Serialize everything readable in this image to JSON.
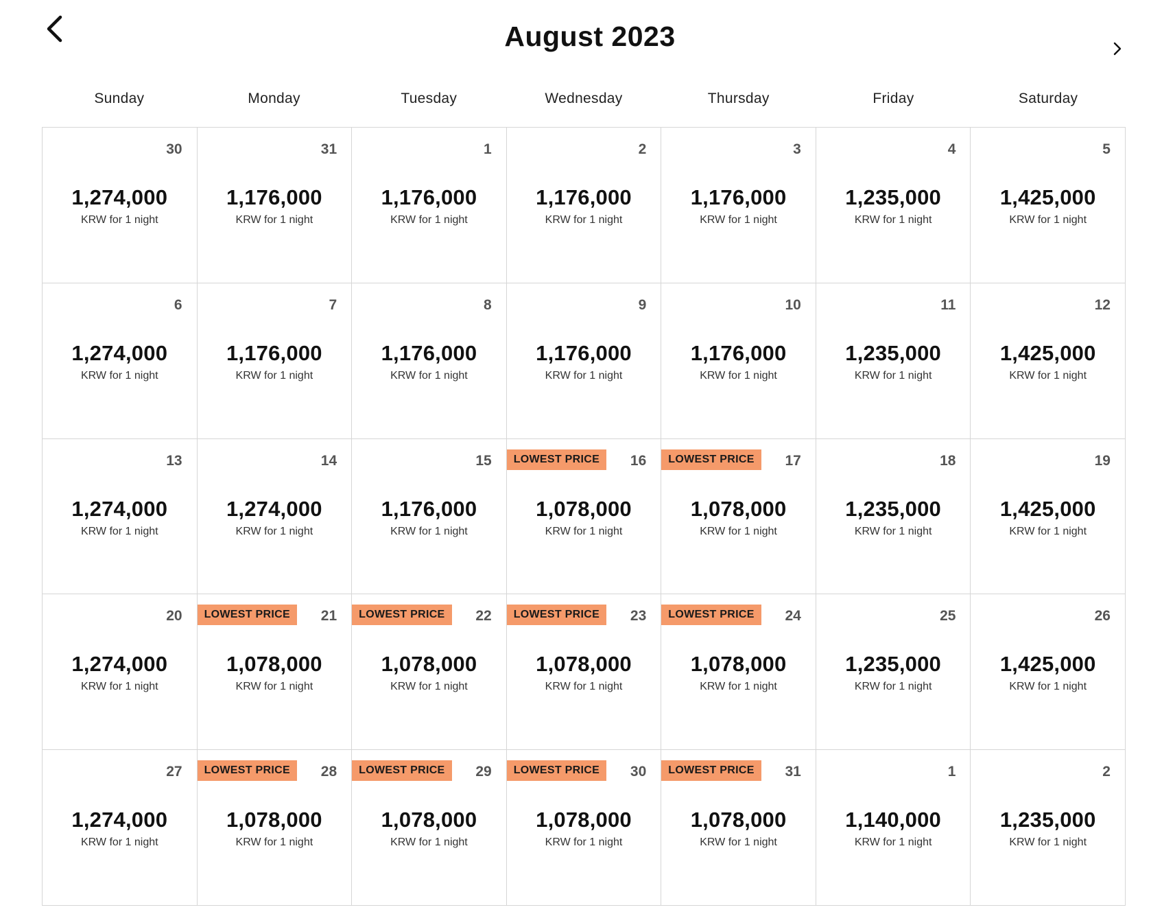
{
  "header": {
    "title": "August 2023",
    "back_icon": "chevron-left-icon",
    "next_icon": "chevron-right-icon"
  },
  "weekdays": [
    "Sunday",
    "Monday",
    "Tuesday",
    "Wednesday",
    "Thursday",
    "Friday",
    "Saturday"
  ],
  "badge_color": "#f59a6a",
  "days": [
    {
      "day": "30",
      "price": "1,274,000",
      "note": "KRW for 1 night",
      "badge": ""
    },
    {
      "day": "31",
      "price": "1,176,000",
      "note": "KRW for 1 night",
      "badge": ""
    },
    {
      "day": "1",
      "price": "1,176,000",
      "note": "KRW for 1 night",
      "badge": ""
    },
    {
      "day": "2",
      "price": "1,176,000",
      "note": "KRW for 1 night",
      "badge": ""
    },
    {
      "day": "3",
      "price": "1,176,000",
      "note": "KRW for 1 night",
      "badge": ""
    },
    {
      "day": "4",
      "price": "1,235,000",
      "note": "KRW for 1 night",
      "badge": ""
    },
    {
      "day": "5",
      "price": "1,425,000",
      "note": "KRW for 1 night",
      "badge": ""
    },
    {
      "day": "6",
      "price": "1,274,000",
      "note": "KRW for 1 night",
      "badge": ""
    },
    {
      "day": "7",
      "price": "1,176,000",
      "note": "KRW for 1 night",
      "badge": ""
    },
    {
      "day": "8",
      "price": "1,176,000",
      "note": "KRW for 1 night",
      "badge": ""
    },
    {
      "day": "9",
      "price": "1,176,000",
      "note": "KRW for 1 night",
      "badge": ""
    },
    {
      "day": "10",
      "price": "1,176,000",
      "note": "KRW for 1 night",
      "badge": ""
    },
    {
      "day": "11",
      "price": "1,235,000",
      "note": "KRW for 1 night",
      "badge": ""
    },
    {
      "day": "12",
      "price": "1,425,000",
      "note": "KRW for 1 night",
      "badge": ""
    },
    {
      "day": "13",
      "price": "1,274,000",
      "note": "KRW for 1 night",
      "badge": ""
    },
    {
      "day": "14",
      "price": "1,274,000",
      "note": "KRW for 1 night",
      "badge": ""
    },
    {
      "day": "15",
      "price": "1,176,000",
      "note": "KRW for 1 night",
      "badge": ""
    },
    {
      "day": "16",
      "price": "1,078,000",
      "note": "KRW for 1 night",
      "badge": "LOWEST PRICE"
    },
    {
      "day": "17",
      "price": "1,078,000",
      "note": "KRW for 1 night",
      "badge": "LOWEST PRICE"
    },
    {
      "day": "18",
      "price": "1,235,000",
      "note": "KRW for 1 night",
      "badge": ""
    },
    {
      "day": "19",
      "price": "1,425,000",
      "note": "KRW for 1 night",
      "badge": ""
    },
    {
      "day": "20",
      "price": "1,274,000",
      "note": "KRW for 1 night",
      "badge": ""
    },
    {
      "day": "21",
      "price": "1,078,000",
      "note": "KRW for 1 night",
      "badge": "LOWEST PRICE"
    },
    {
      "day": "22",
      "price": "1,078,000",
      "note": "KRW for 1 night",
      "badge": "LOWEST PRICE"
    },
    {
      "day": "23",
      "price": "1,078,000",
      "note": "KRW for 1 night",
      "badge": "LOWEST PRICE"
    },
    {
      "day": "24",
      "price": "1,078,000",
      "note": "KRW for 1 night",
      "badge": "LOWEST PRICE"
    },
    {
      "day": "25",
      "price": "1,235,000",
      "note": "KRW for 1 night",
      "badge": ""
    },
    {
      "day": "26",
      "price": "1,425,000",
      "note": "KRW for 1 night",
      "badge": ""
    },
    {
      "day": "27",
      "price": "1,274,000",
      "note": "KRW for 1 night",
      "badge": ""
    },
    {
      "day": "28",
      "price": "1,078,000",
      "note": "KRW for 1 night",
      "badge": "LOWEST PRICE"
    },
    {
      "day": "29",
      "price": "1,078,000",
      "note": "KRW for 1 night",
      "badge": "LOWEST PRICE"
    },
    {
      "day": "30",
      "price": "1,078,000",
      "note": "KRW for 1 night",
      "badge": "LOWEST PRICE"
    },
    {
      "day": "31",
      "price": "1,078,000",
      "note": "KRW for 1 night",
      "badge": "LOWEST PRICE"
    },
    {
      "day": "1",
      "price": "1,140,000",
      "note": "KRW for 1 night",
      "badge": ""
    },
    {
      "day": "2",
      "price": "1,235,000",
      "note": "KRW for 1 night",
      "badge": ""
    }
  ]
}
